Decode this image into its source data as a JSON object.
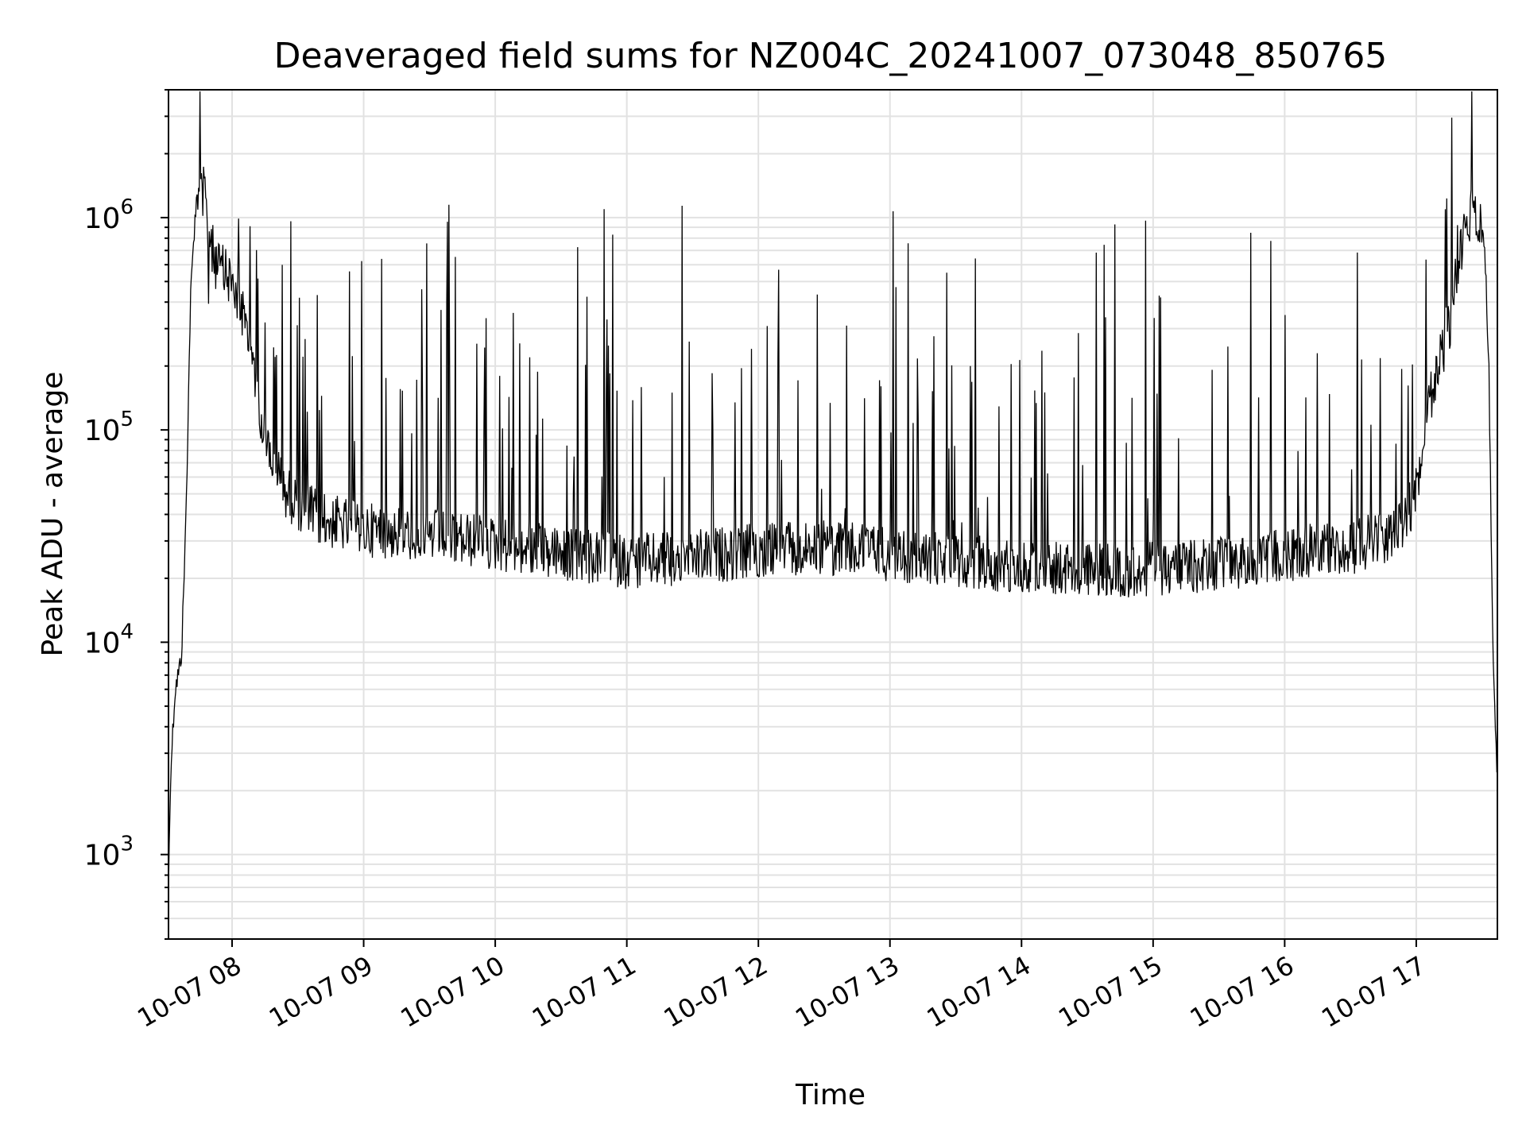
{
  "chart_data": {
    "type": "line",
    "title": "Deaveraged field sums for NZ004C_20241007_073048_850765",
    "xlabel": "Time",
    "ylabel": "Peak ADU - average",
    "yscale": "log",
    "ylim": [
      400,
      4000000
    ],
    "xlim": [
      "2024-10-07 07:31",
      "2024-10-07 17:37"
    ],
    "grid": true,
    "line_color": "#000000",
    "x_ticks": [
      {
        "value": "2024-10-07 08:00",
        "label": "10-07 08"
      },
      {
        "value": "2024-10-07 09:00",
        "label": "10-07 09"
      },
      {
        "value": "2024-10-07 10:00",
        "label": "10-07 10"
      },
      {
        "value": "2024-10-07 11:00",
        "label": "10-07 11"
      },
      {
        "value": "2024-10-07 12:00",
        "label": "10-07 12"
      },
      {
        "value": "2024-10-07 13:00",
        "label": "10-07 13"
      },
      {
        "value": "2024-10-07 14:00",
        "label": "10-07 14"
      },
      {
        "value": "2024-10-07 15:00",
        "label": "10-07 15"
      },
      {
        "value": "2024-10-07 16:00",
        "label": "10-07 16"
      },
      {
        "value": "2024-10-07 17:00",
        "label": "10-07 17"
      }
    ],
    "y_ticks": [
      {
        "value": 1000,
        "base": "10",
        "exp": "3"
      },
      {
        "value": 10000,
        "base": "10",
        "exp": "4"
      },
      {
        "value": 100000,
        "base": "10",
        "exp": "5"
      },
      {
        "value": 1000000,
        "base": "10",
        "exp": "6"
      }
    ],
    "series": [
      {
        "x": [
          "2024-10-07 07:31",
          "2024-10-07 07:32",
          "2024-10-07 07:34",
          "2024-10-07 07:36",
          "2024-10-07 07:37",
          "2024-10-07 07:39",
          "2024-10-07 07:41",
          "2024-10-07 07:43",
          "2024-10-07 07:45",
          "2024-10-07 07:47",
          "2024-10-07 07:49",
          "2024-10-07 07:51",
          "2024-10-07 07:53",
          "2024-10-07 07:56",
          "2024-10-07 08:00",
          "2024-10-07 08:05",
          "2024-10-07 08:10",
          "2024-10-07 08:15",
          "2024-10-07 08:25",
          "2024-10-07 08:40",
          "2024-10-07 09:00",
          "2024-10-07 09:30",
          "2024-10-07 10:00",
          "2024-10-07 10:30",
          "2024-10-07 11:00",
          "2024-10-07 11:30",
          "2024-10-07 12:00",
          "2024-10-07 12:30",
          "2024-10-07 13:00",
          "2024-10-07 13:30",
          "2024-10-07 14:00",
          "2024-10-07 14:30",
          "2024-10-07 15:00",
          "2024-10-07 15:30",
          "2024-10-07 16:00",
          "2024-10-07 16:30",
          "2024-10-07 16:50",
          "2024-10-07 17:00",
          "2024-10-07 17:05",
          "2024-10-07 17:10",
          "2024-10-07 17:15",
          "2024-10-07 17:20",
          "2024-10-07 17:25",
          "2024-10-07 17:30",
          "2024-10-07 17:33",
          "2024-10-07 17:35",
          "2024-10-07 17:37"
        ],
        "y": [
          700,
          2500,
          6000,
          7500,
          9000,
          40000,
          400000,
          1000000,
          1500000,
          1300000,
          900000,
          700000,
          600000,
          550000,
          500000,
          350000,
          200000,
          90000,
          50000,
          38000,
          34000,
          32000,
          29000,
          26000,
          24000,
          25000,
          27000,
          28000,
          26000,
          24000,
          23000,
          22000,
          22000,
          23000,
          26000,
          28000,
          32000,
          50000,
          120000,
          200000,
          300000,
          700000,
          1000000,
          900000,
          250000,
          8000,
          2000
        ]
      }
    ]
  }
}
